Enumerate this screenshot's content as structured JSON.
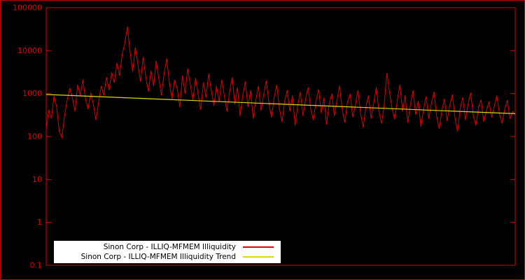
{
  "figure": {
    "background": "#000000",
    "border_color": "#c00000"
  },
  "chart_data": {
    "type": "line",
    "title": "",
    "xlabel": "",
    "ylabel": "",
    "ylog": true,
    "ylim": [
      0.1,
      100000
    ],
    "yticks": [
      "100000",
      "10000",
      "1000",
      "100",
      "10",
      "1",
      "0.1"
    ],
    "axis_color": "#dd0000",
    "grid": false,
    "legend_position": "bottom-center",
    "legend_background": "#ffffff",
    "series": [
      {
        "name": "Sinon Corp - ILLIQ-MFMEM Illiquidity",
        "color": "#dd0000",
        "values": [
          150,
          420,
          260,
          900,
          480,
          130,
          95,
          310,
          700,
          1350,
          800,
          380,
          1600,
          920,
          2100,
          760,
          430,
          1050,
          560,
          240,
          640,
          1500,
          900,
          2400,
          1200,
          3100,
          1800,
          5200,
          2600,
          8000,
          15000,
          36000,
          9500,
          3200,
          12000,
          4800,
          1900,
          7000,
          2500,
          1100,
          3400,
          1500,
          5800,
          2200,
          900,
          2900,
          6500,
          1800,
          750,
          2100,
          1300,
          480,
          2600,
          1000,
          3800,
          1600,
          700,
          2300,
          950,
          420,
          1800,
          800,
          2900,
          1200,
          520,
          1500,
          650,
          2100,
          880,
          380,
          1100,
          2400,
          560,
          1400,
          300,
          900,
          1900,
          480,
          1200,
          260,
          700,
          1500,
          400,
          950,
          2000,
          600,
          280,
          800,
          1600,
          450,
          220,
          650,
          1200,
          380,
          900,
          180,
          520,
          1100,
          300,
          760,
          1400,
          420,
          240,
          680,
          1250,
          350,
          800,
          190,
          560,
          1000,
          300,
          720,
          1500,
          400,
          210,
          650,
          980,
          280,
          540,
          1200,
          340,
          160,
          480,
          900,
          260,
          600,
          1400,
          380,
          200,
          520,
          3000,
          1100,
          450,
          250,
          700,
          1600,
          380,
          900,
          210,
          550,
          1200,
          320,
          680,
          170,
          420,
          850,
          260,
          580,
          1100,
          300,
          150,
          400,
          760,
          230,
          520,
          950,
          280,
          130,
          450,
          820,
          240,
          560,
          1050,
          310,
          180,
          480,
          720,
          220,
          390,
          650,
          280,
          500,
          900,
          340,
          200,
          430,
          700,
          260,
          380,
          320
        ]
      },
      {
        "name": "Sinon Corp - ILLIQ-MFMEM Illiquidity Trend",
        "color": "#d8d800",
        "trend": true,
        "values": [
          950,
          340
        ]
      }
    ]
  }
}
